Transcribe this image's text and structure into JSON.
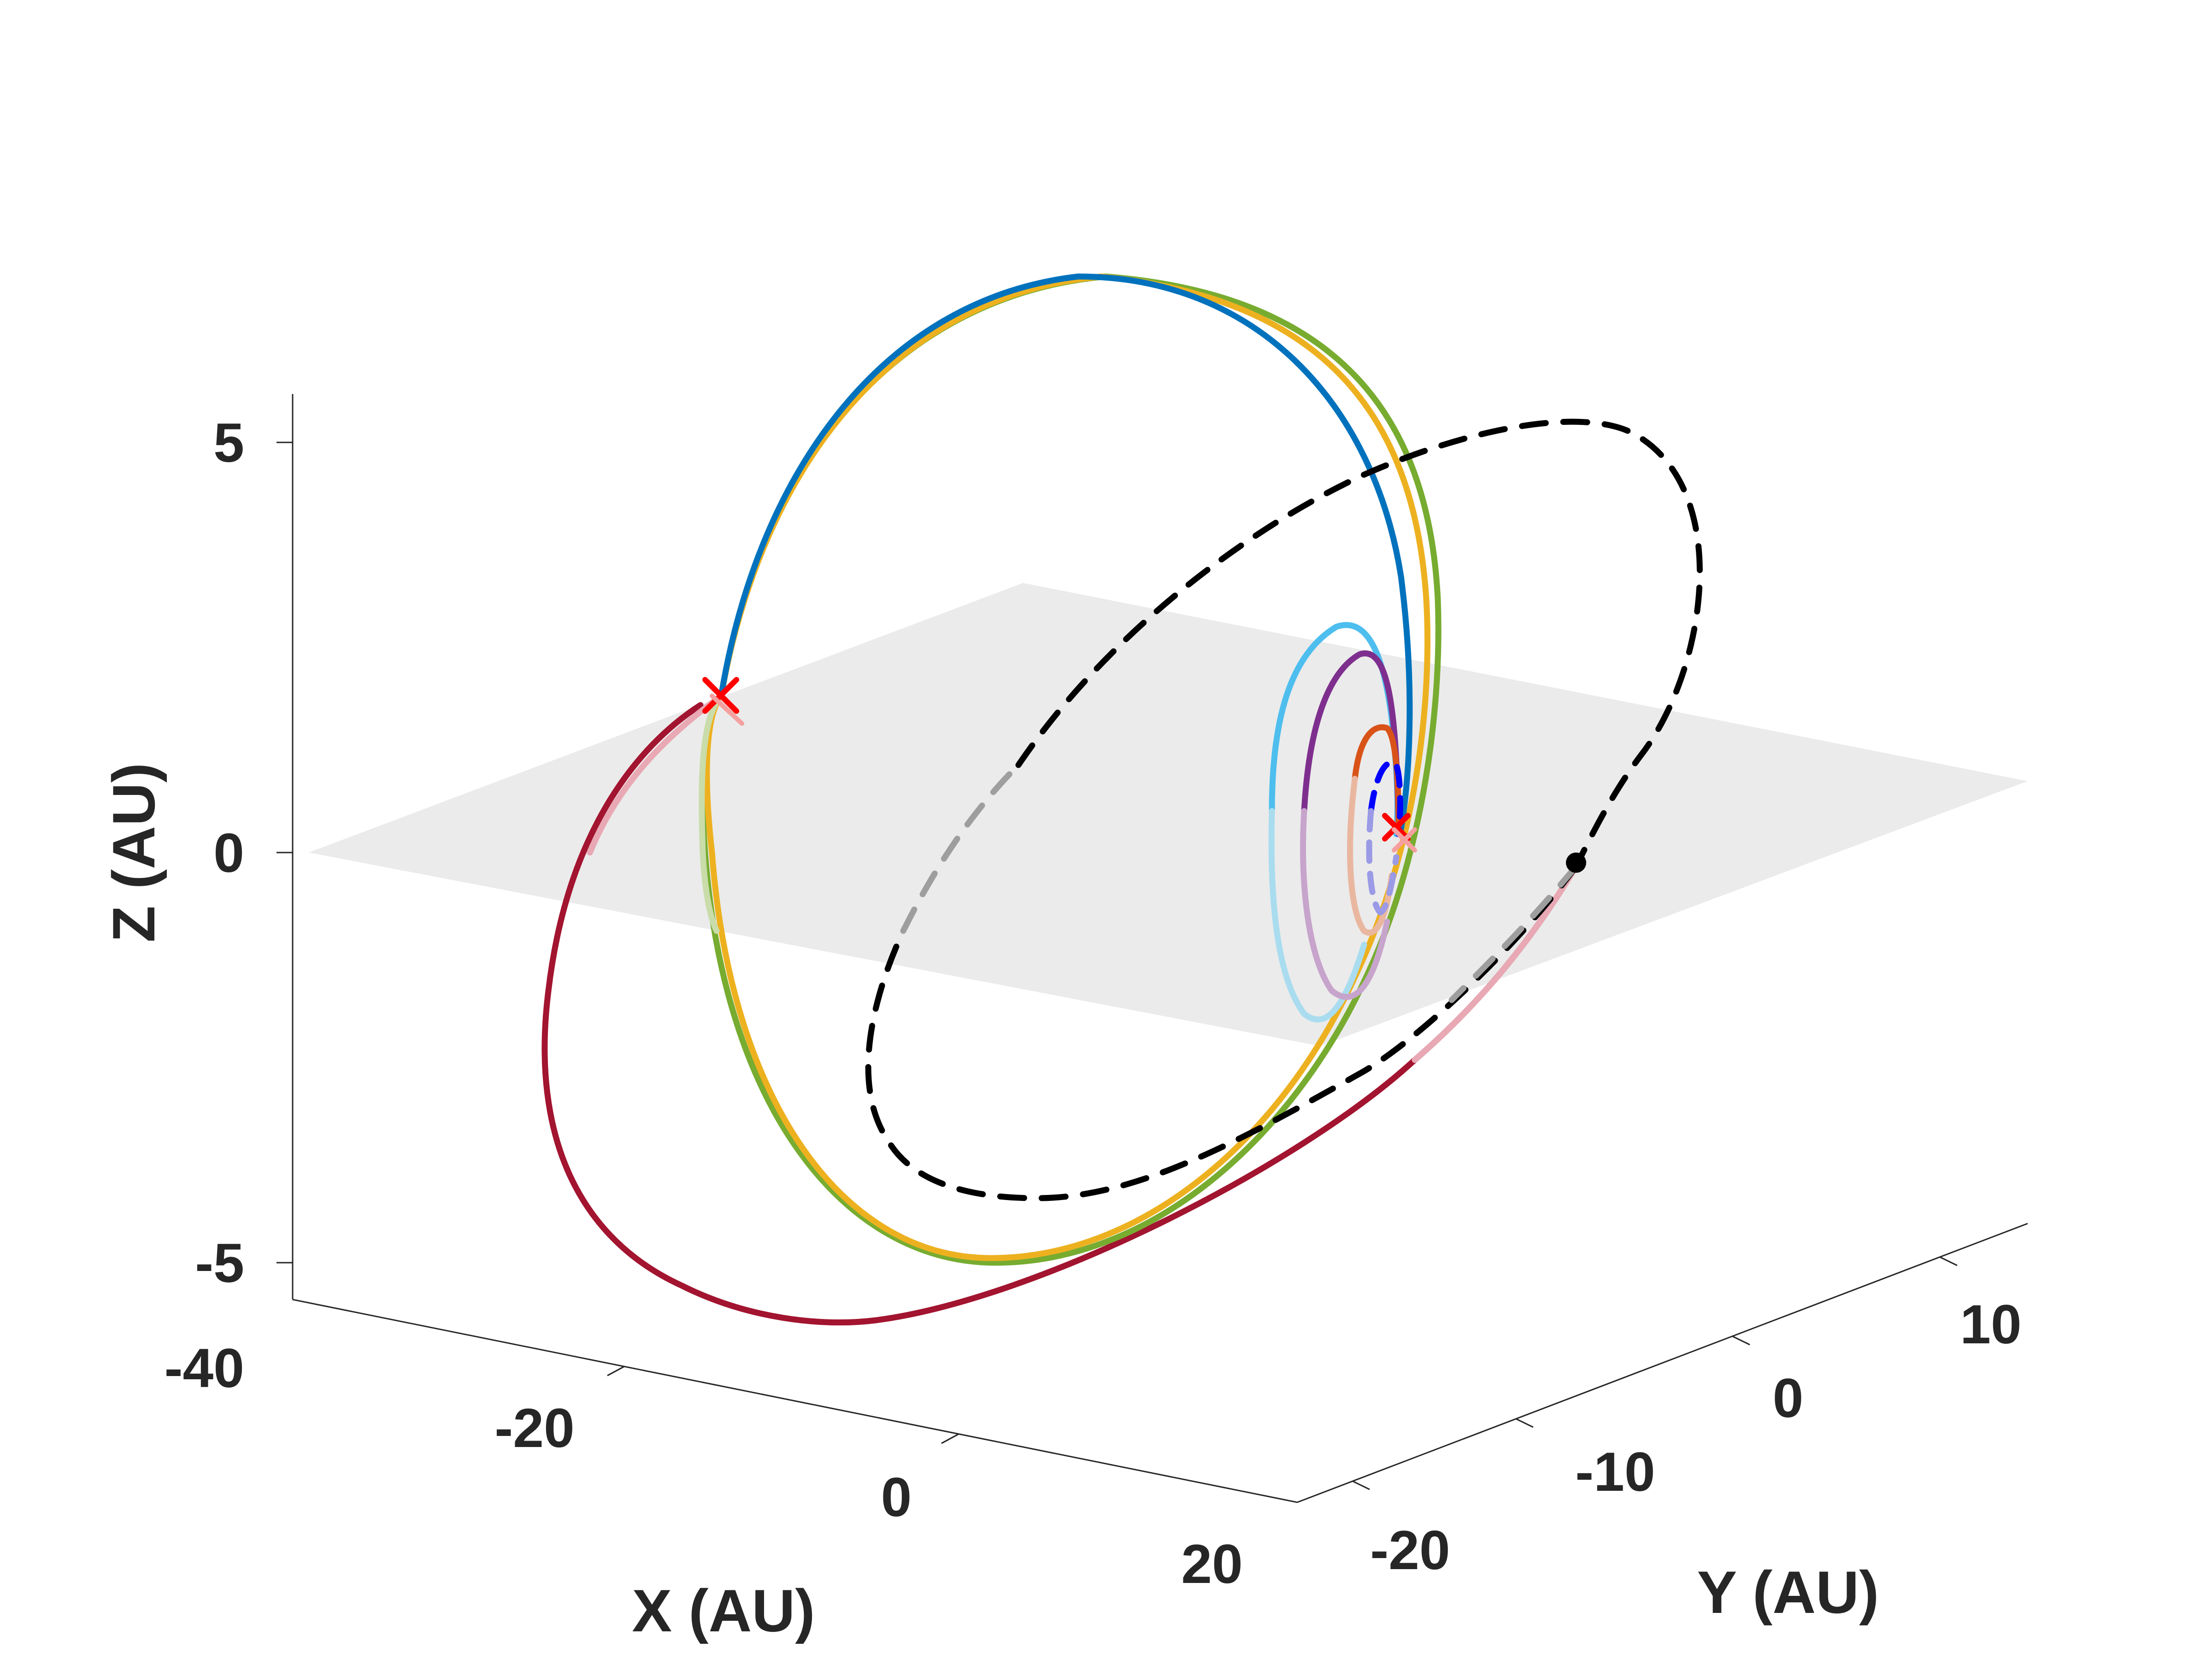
{
  "chart_data": {
    "type": "line3d",
    "title": "",
    "xlabel": "X (AU)",
    "ylabel": "Y (AU)",
    "zlabel": "Z (AU)",
    "xticks": [
      "-40",
      "-20",
      "0",
      "20"
    ],
    "yticks": [
      "-20",
      "-10",
      "0",
      "10"
    ],
    "zticks": [
      "-5",
      "0",
      "5"
    ],
    "xlim": [
      -40,
      20
    ],
    "ylim": [
      -20,
      15
    ],
    "zlim": [
      -5.5,
      5.5
    ],
    "grid": false,
    "reference_plane": {
      "description": "z = 0 plane",
      "color": "#e6e6e6"
    },
    "series": [
      {
        "color": "#0072bd",
        "style": "solid",
        "note": "outer inclined orbit"
      },
      {
        "color": "#edb120",
        "style": "solid",
        "note": "outer inclined orbit"
      },
      {
        "color": "#77ac30",
        "style": "solid",
        "note": "outer inclined orbit"
      },
      {
        "color": "#a2142f",
        "style": "solid",
        "note": "outer orbit"
      },
      {
        "color": "#4dbeee",
        "style": "solid",
        "note": "inner orbit"
      },
      {
        "color": "#7e2f8e",
        "style": "solid",
        "note": "inner orbit"
      },
      {
        "color": "#d95319",
        "style": "solid",
        "note": "inner orbit"
      },
      {
        "color": "#0000ff",
        "style": "dashed",
        "note": "innermost orbit"
      },
      {
        "color": "#000000",
        "style": "dashed",
        "note": "reference orbit"
      }
    ],
    "markers": [
      {
        "type": "x",
        "color": "#ff0000"
      },
      {
        "type": "x",
        "color": "#ff0000"
      },
      {
        "type": "dot",
        "color": "#000000"
      }
    ]
  }
}
